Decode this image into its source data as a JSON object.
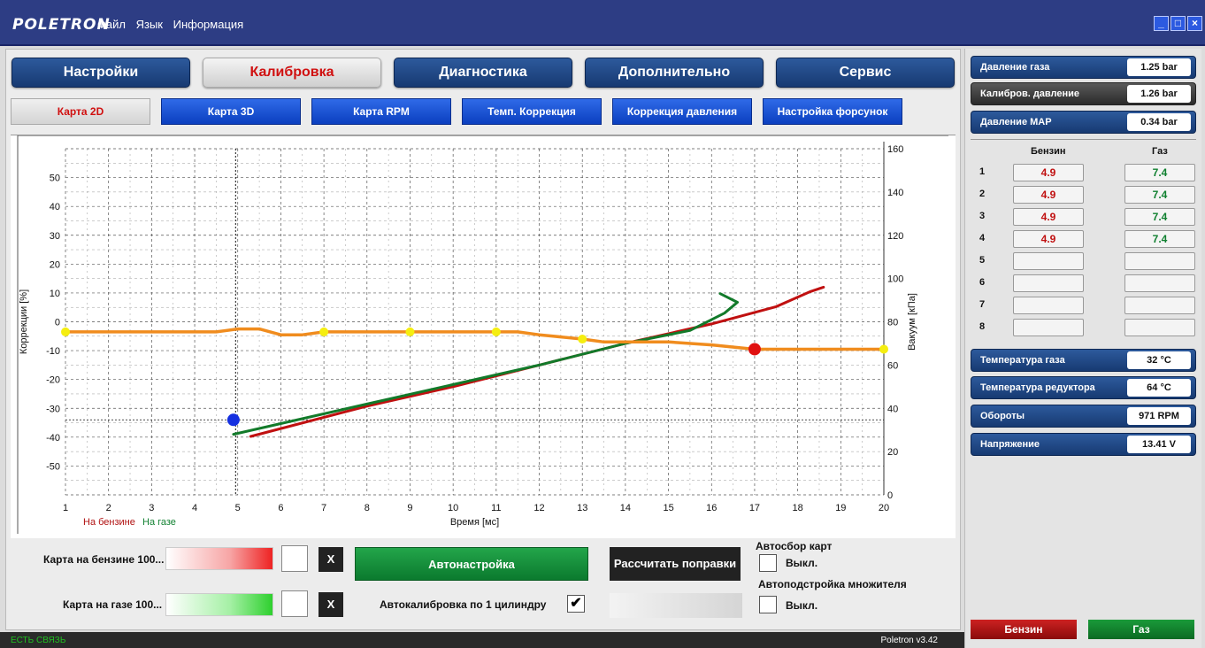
{
  "app": {
    "logo": "POLETRON",
    "menu": [
      "Файл",
      "Язык",
      "Информация"
    ],
    "window_controls": [
      "_",
      "□",
      "×"
    ]
  },
  "top_tabs": [
    {
      "label": "Настройки",
      "active": false
    },
    {
      "label": "Калибровка",
      "active": true
    },
    {
      "label": "Диагностика",
      "active": false
    },
    {
      "label": "Дополнительно",
      "active": false
    },
    {
      "label": "Сервис",
      "active": false
    }
  ],
  "sub_tabs": [
    {
      "label": "Карта 2D",
      "active": true
    },
    {
      "label": "Карта 3D",
      "active": false
    },
    {
      "label": "Карта RPM",
      "active": false
    },
    {
      "label": "Темп. Коррекция",
      "active": false
    },
    {
      "label": "Коррекция давления",
      "active": false
    },
    {
      "label": "Настройка форсунок",
      "active": false
    }
  ],
  "chart_data": {
    "type": "line",
    "xlabel": "Время [мс]",
    "ylabel": "Коррекции [%]",
    "y2label": "Вакуум [кПа]",
    "xlim": [
      1,
      20
    ],
    "ylim": [
      -60,
      60
    ],
    "y2lim": [
      0,
      160
    ],
    "x_ticks": [
      1,
      2,
      3,
      4,
      5,
      6,
      7,
      8,
      9,
      10,
      11,
      12,
      13,
      14,
      15,
      16,
      17,
      18,
      19,
      20
    ],
    "y_ticks": [
      -50,
      -40,
      -30,
      -20,
      -10,
      0,
      10,
      20,
      30,
      40,
      50
    ],
    "y2_ticks": [
      0,
      20,
      40,
      60,
      80,
      100,
      120,
      140,
      160
    ],
    "grid": true,
    "legend": [
      {
        "name": "На бензине",
        "color": "#b01010"
      },
      {
        "name": "На газе",
        "color": "#108030"
      }
    ],
    "correction_line": {
      "color": "#f08c1e",
      "points": [
        [
          1,
          -3.5
        ],
        [
          4.5,
          -3.5
        ],
        [
          5,
          -2.5
        ],
        [
          5.5,
          -2.5
        ],
        [
          6,
          -4.5
        ],
        [
          6.5,
          -4.5
        ],
        [
          7,
          -3.5
        ],
        [
          9,
          -3.5
        ],
        [
          11,
          -3.5
        ],
        [
          11.5,
          -3.5
        ],
        [
          12,
          -4.5
        ],
        [
          13,
          -6
        ],
        [
          13.5,
          -7
        ],
        [
          15,
          -7
        ],
        [
          16,
          -8
        ],
        [
          17,
          -9.5
        ],
        [
          20,
          -9.5
        ]
      ],
      "markers": [
        [
          1,
          -3.5
        ],
        [
          7,
          -3.5
        ],
        [
          9,
          -3.5
        ],
        [
          11,
          -3.5
        ],
        [
          13,
          -6
        ],
        [
          20,
          -9.5
        ]
      ],
      "marker_color": "#f5ee10"
    },
    "series": [
      {
        "name": "На бензине",
        "color": "#c01010",
        "axis": "y2",
        "points": [
          [
            5.3,
            27
          ],
          [
            8,
            41
          ],
          [
            10,
            50
          ],
          [
            12,
            60
          ],
          [
            14,
            70
          ],
          [
            16,
            79
          ],
          [
            17.5,
            87
          ],
          [
            18.3,
            94
          ],
          [
            18.6,
            96
          ]
        ]
      },
      {
        "name": "На газе",
        "color": "#127a2a",
        "axis": "y2",
        "points": [
          [
            4.9,
            28
          ],
          [
            8,
            42
          ],
          [
            10,
            51
          ],
          [
            12,
            60
          ],
          [
            14,
            70
          ],
          [
            15.5,
            76
          ],
          [
            16.3,
            84
          ],
          [
            16.6,
            89
          ],
          [
            16.2,
            93
          ]
        ]
      }
    ],
    "markers": [
      {
        "x": 4.9,
        "y": -34,
        "color": "#1530e0"
      },
      {
        "x": 17,
        "y": -9.5,
        "color": "#e01010"
      }
    ],
    "cursor_x": 4.95
  },
  "bottom": {
    "petrol_map_label": "Карта на бензине 100...",
    "gas_map_label": "Карта на газе 100...",
    "x_label": "X",
    "auto_tune": "Автонастройка",
    "calc_corrections": "Рассчитать поправки",
    "auto_calib_label": "Автокалибровка по 1 цилиндру",
    "auto_calib_checked": "✔",
    "auto_collect_title": "Автосбор карт",
    "auto_collect_state": "Выкл.",
    "auto_mult_title": "Автоподстройка  множителя",
    "auto_mult_state": "Выкл."
  },
  "status": {
    "connection": "ЕСТЬ СВЯЗЬ",
    "version": "Poletron v3.42"
  },
  "side": {
    "gas_pressure": {
      "label": "Давление газа",
      "value": "1.25 bar"
    },
    "calib_pressure": {
      "label": "Калибров. давление",
      "value": "1.26 bar"
    },
    "map_pressure": {
      "label": "Давление MAP",
      "value": "0.34 bar"
    },
    "col_petrol": "Бензин",
    "col_gas": "Газ",
    "rows": [
      {
        "n": "1",
        "petrol": "4.9",
        "gas": "7.4"
      },
      {
        "n": "2",
        "petrol": "4.9",
        "gas": "7.4"
      },
      {
        "n": "3",
        "petrol": "4.9",
        "gas": "7.4"
      },
      {
        "n": "4",
        "petrol": "4.9",
        "gas": "7.4"
      },
      {
        "n": "5",
        "petrol": "",
        "gas": ""
      },
      {
        "n": "6",
        "petrol": "",
        "gas": ""
      },
      {
        "n": "7",
        "petrol": "",
        "gas": ""
      },
      {
        "n": "8",
        "petrol": "",
        "gas": ""
      }
    ],
    "gas_temp": {
      "label": "Температура газа",
      "value": "32 °C"
    },
    "reducer_temp": {
      "label": "Температура редуктора",
      "value": "64 °C"
    },
    "rpm": {
      "label": "Обороты",
      "value": "971 RPM"
    },
    "voltage": {
      "label": "Напряжение",
      "value": "13.41 V"
    },
    "btn_petrol": "Бензин",
    "btn_gas": "Газ"
  }
}
